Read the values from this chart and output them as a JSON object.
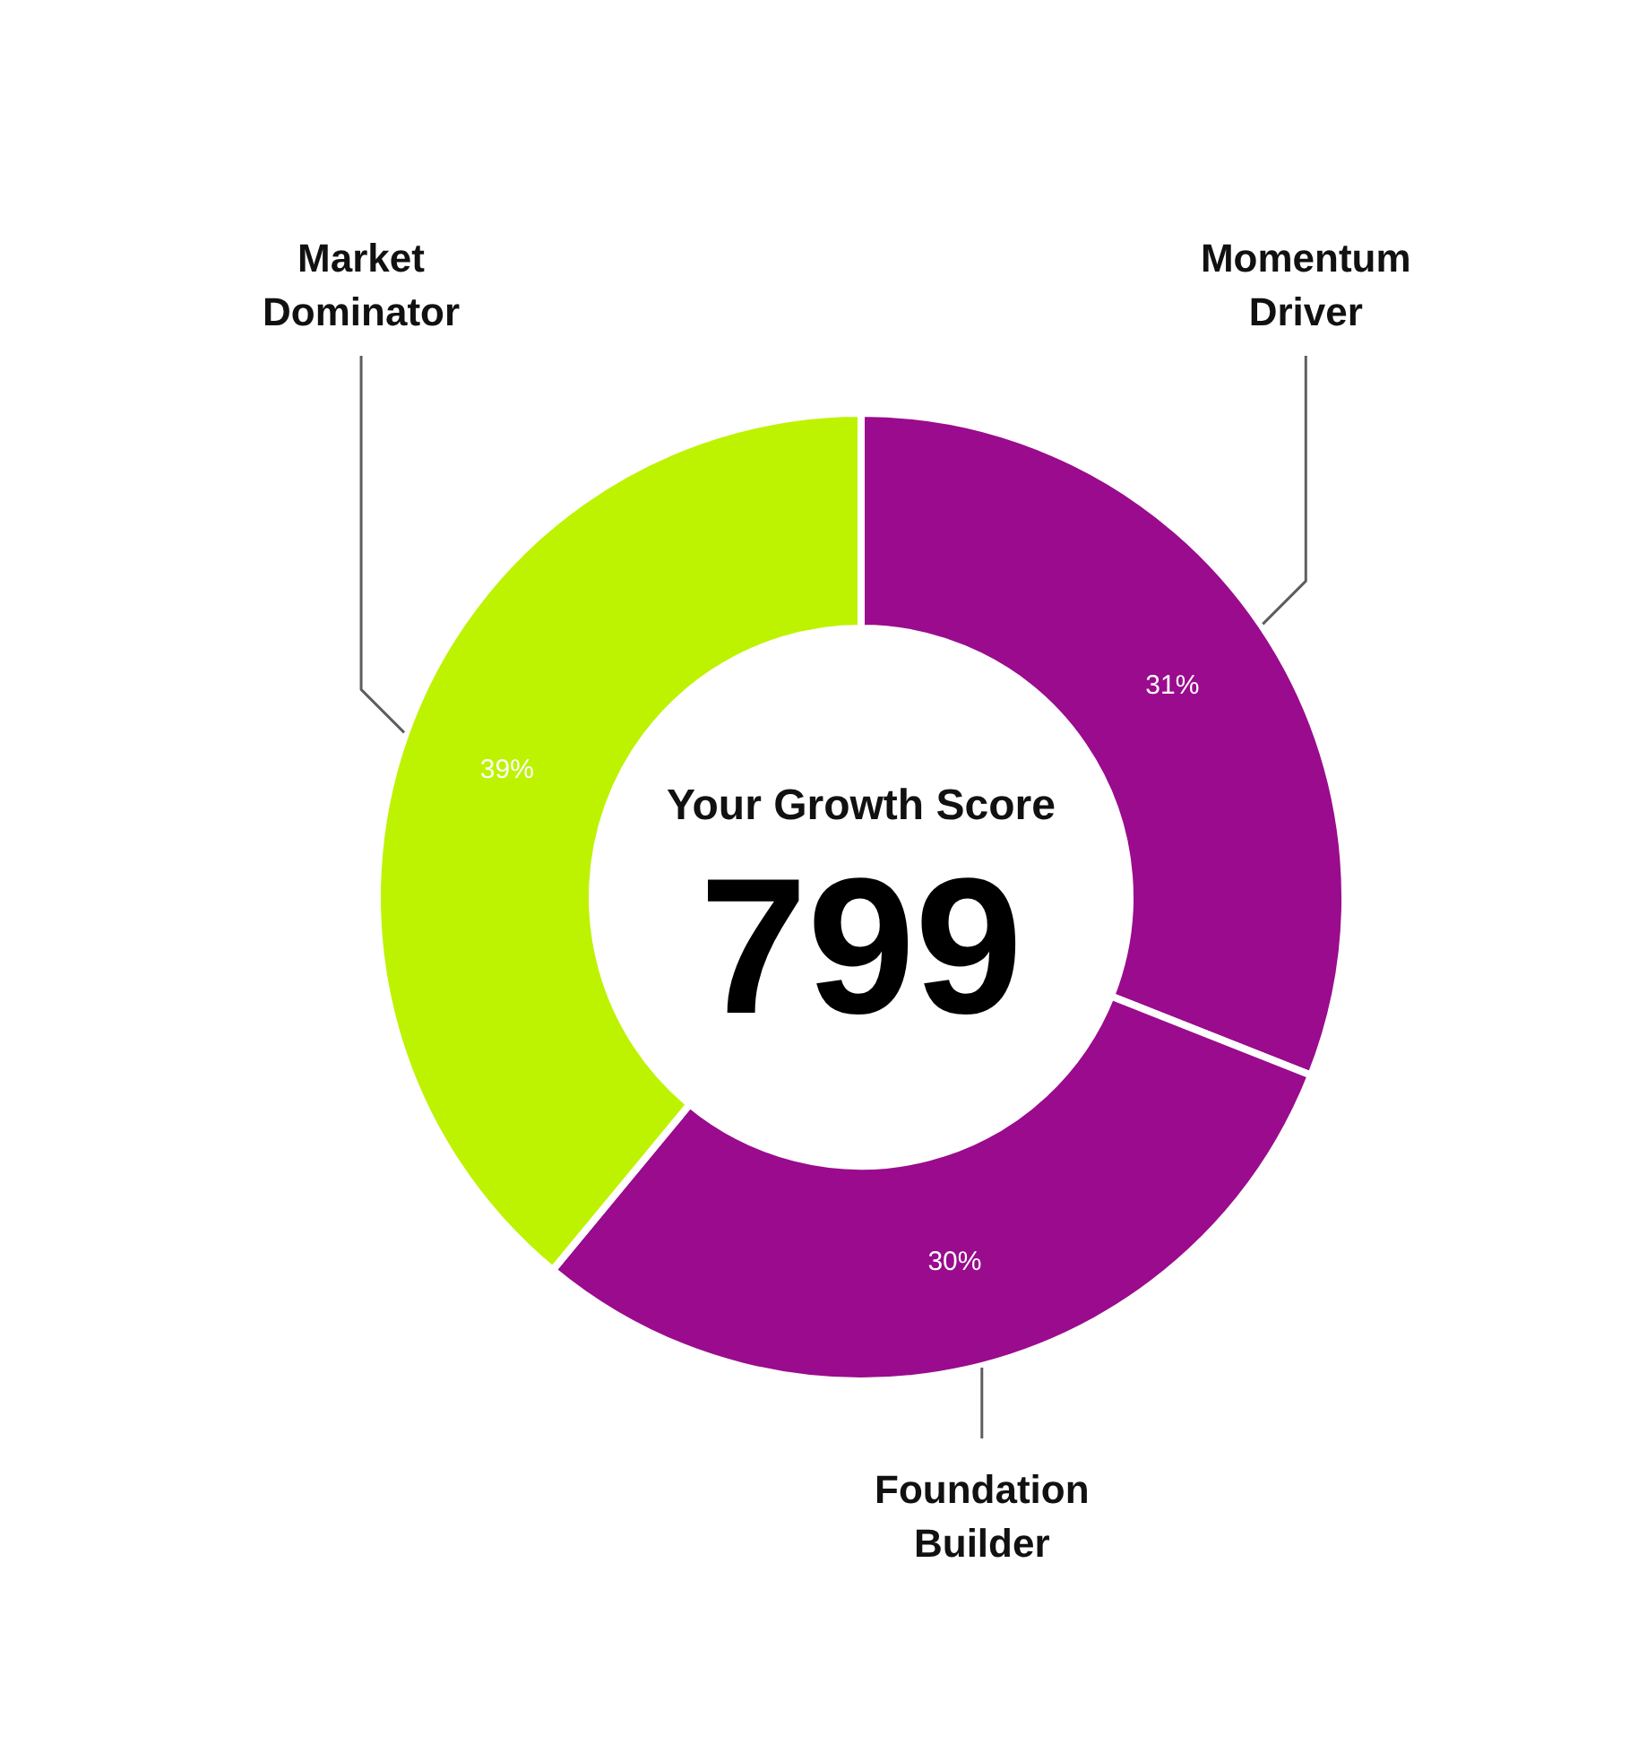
{
  "chart_data": {
    "type": "donut",
    "title": "Your Growth Score",
    "annotations": [
      "799"
    ],
    "categories": [
      "Momentum Driver",
      "Foundation Builder",
      "Market Dominator"
    ],
    "values": [
      31,
      30,
      39
    ],
    "colors": [
      "#9a0b8d",
      "#9a0b8d",
      "#bdf300"
    ],
    "value_labels": [
      "31%",
      "30%",
      "39%"
    ]
  }
}
